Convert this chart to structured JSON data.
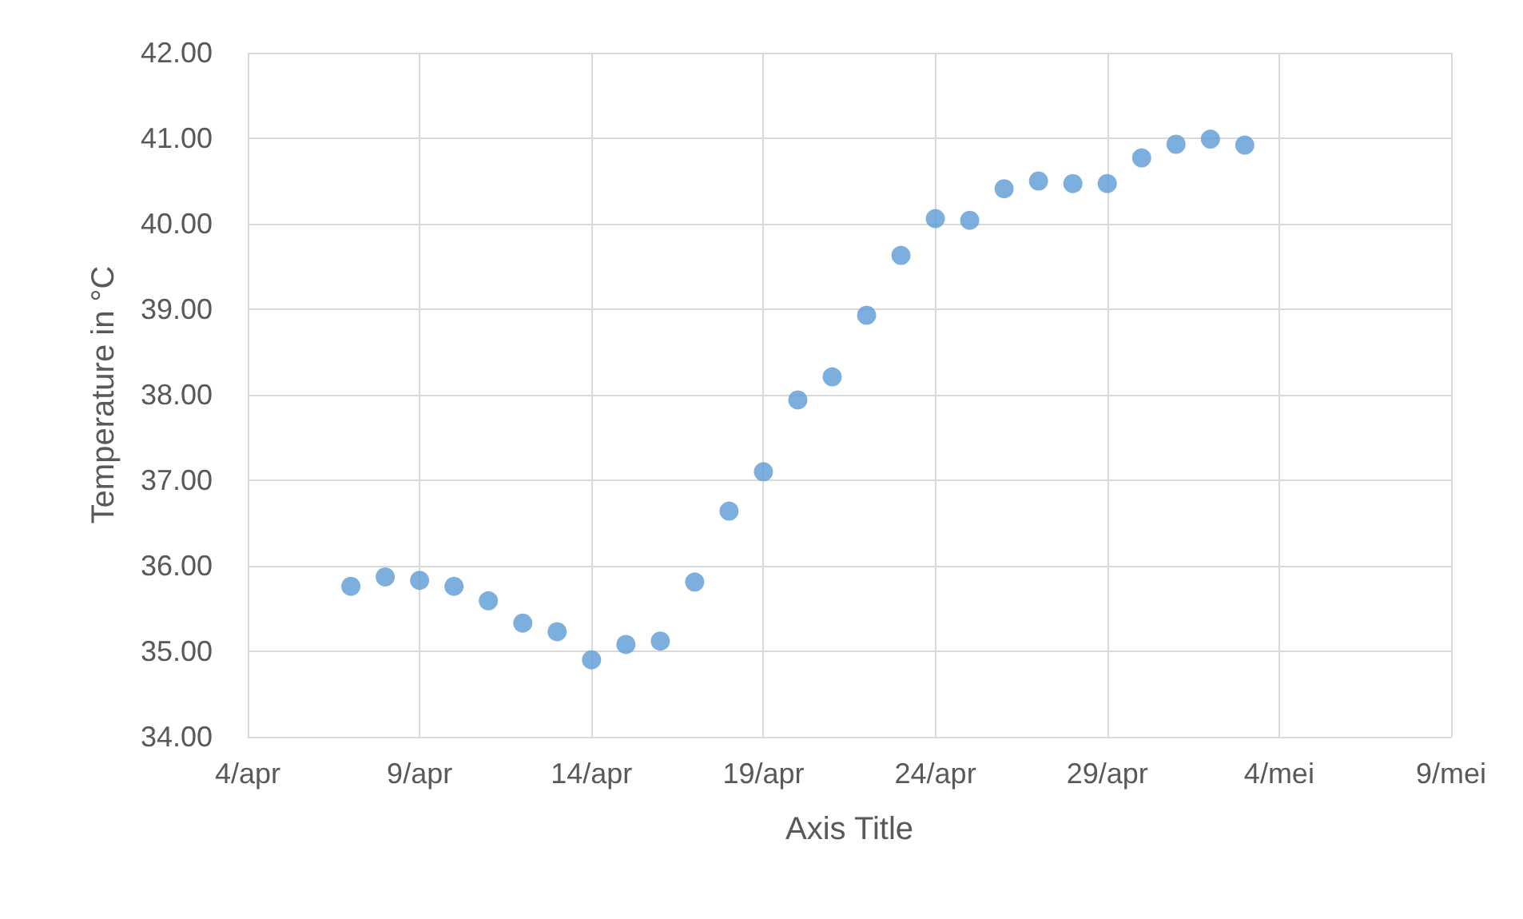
{
  "chart_data": {
    "type": "scatter",
    "xlabel": "Axis Title",
    "ylabel": "Temperature in °C",
    "x": [
      "--04-07",
      "--04-08",
      "--04-09",
      "--04-10",
      "--04-11",
      "--04-12",
      "--04-13",
      "--04-14",
      "--04-15",
      "--04-16",
      "--04-17",
      "--04-18",
      "--04-19",
      "--04-20",
      "--04-21",
      "--04-22",
      "--04-23",
      "--04-24",
      "--04-25",
      "--04-26",
      "--04-27",
      "--04-28",
      "--04-29",
      "--04-30",
      "--05-01",
      "--05-02",
      "--05-03"
    ],
    "series": [
      {
        "color": "#5b9bd5",
        "values": [
          35.76,
          35.87,
          35.83,
          35.76,
          35.59,
          35.33,
          35.23,
          34.9,
          35.08,
          35.12,
          35.81,
          36.64,
          37.1,
          37.94,
          38.21,
          38.93,
          39.63,
          40.06,
          40.04,
          40.41,
          40.5,
          40.47,
          40.47,
          40.77,
          40.93,
          40.99,
          40.92
        ]
      }
    ],
    "xlim": [
      "--04-04",
      "--05-09"
    ],
    "xticks": [
      {
        "value": "--04-04",
        "label": "4/apr"
      },
      {
        "value": "--04-09",
        "label": "9/apr"
      },
      {
        "value": "--04-14",
        "label": "14/apr"
      },
      {
        "value": "--04-19",
        "label": "19/apr"
      },
      {
        "value": "--04-24",
        "label": "24/apr"
      },
      {
        "value": "--04-29",
        "label": "29/apr"
      },
      {
        "value": "--05-04",
        "label": "4/mei"
      },
      {
        "value": "--05-09",
        "label": "9/mei"
      }
    ],
    "ylim": [
      34,
      42
    ],
    "yticks": [
      {
        "value": 34,
        "label": "34.00"
      },
      {
        "value": 35,
        "label": "35.00"
      },
      {
        "value": 36,
        "label": "36.00"
      },
      {
        "value": 37,
        "label": "37.00"
      },
      {
        "value": 38,
        "label": "38.00"
      },
      {
        "value": 39,
        "label": "39.00"
      },
      {
        "value": 40,
        "label": "40.00"
      },
      {
        "value": 41,
        "label": "41.00"
      },
      {
        "value": 42,
        "label": "42.00"
      }
    ],
    "grid": true,
    "marker": "circle"
  }
}
